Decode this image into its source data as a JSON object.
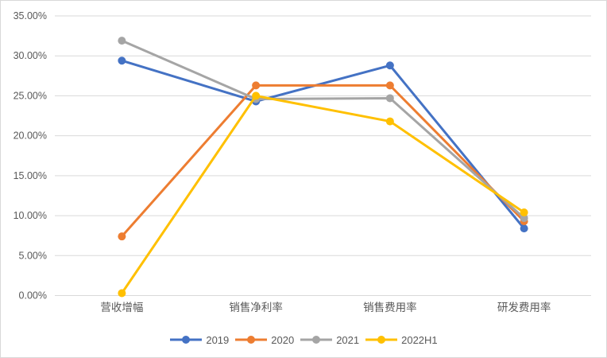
{
  "chart_data": {
    "type": "line",
    "title": "",
    "categories": [
      "营收增幅",
      "销售净利率",
      "销售费用率",
      "研发费用率"
    ],
    "series": [
      {
        "name": "2019",
        "color": "#4472C4",
        "values": [
          29.4,
          24.3,
          28.8,
          8.4
        ]
      },
      {
        "name": "2020",
        "color": "#ED7D31",
        "values": [
          7.4,
          26.3,
          26.3,
          9.3
        ]
      },
      {
        "name": "2021",
        "color": "#A5A5A5",
        "values": [
          31.9,
          24.6,
          24.7,
          9.7
        ]
      },
      {
        "name": "2022H1",
        "color": "#FFC000",
        "values": [
          0.3,
          25.0,
          21.8,
          10.4
        ]
      }
    ],
    "y_axis": {
      "min": 0,
      "max": 35,
      "step": 5,
      "tick_labels": [
        "0.00%",
        "5.00%",
        "10.00%",
        "15.00%",
        "20.00%",
        "25.00%",
        "30.00%",
        "35.00%"
      ]
    },
    "x_axis": {
      "label": ""
    },
    "grid": true,
    "legend_position": "bottom"
  },
  "style": {
    "gridline_color": "#D9D9D9",
    "axis_text_color": "#595959",
    "background": "#FFFFFF",
    "border_color": "#D9D9D9"
  }
}
